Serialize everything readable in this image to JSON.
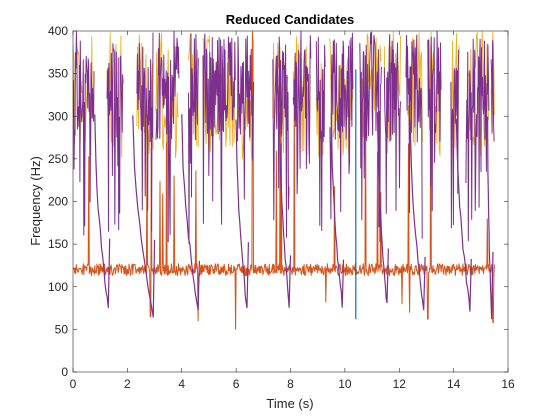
{
  "chart_data": {
    "type": "line",
    "title": "Reduced Candidates",
    "xlabel": "Time (s)",
    "ylabel": "Frequency (Hz)",
    "xlim": [
      0,
      16
    ],
    "ylim": [
      0,
      400
    ],
    "xticks": [
      0,
      2,
      4,
      6,
      8,
      10,
      12,
      14,
      16
    ],
    "yticks": [
      0,
      50,
      100,
      150,
      200,
      250,
      300,
      350,
      400
    ],
    "grid": false,
    "legend": "none",
    "colors": {
      "blue": "#0072BD",
      "orange": "#D95319",
      "yellow": "#EDB120",
      "purple": "#7E2F8E"
    },
    "voiced_segments": [
      [
        0.0,
        0.78
      ],
      [
        1.25,
        1.85
      ],
      [
        2.35,
        2.95
      ],
      [
        3.05,
        3.9
      ],
      [
        4.25,
        4.62
      ],
      [
        4.78,
        5.98
      ],
      [
        6.05,
        6.65
      ],
      [
        7.35,
        7.95
      ],
      [
        8.1,
        8.75
      ],
      [
        8.95,
        9.28
      ],
      [
        9.45,
        10.3
      ],
      [
        10.55,
        11.35
      ],
      [
        11.45,
        12.05
      ],
      [
        12.25,
        12.85
      ],
      [
        13.05,
        13.55
      ],
      [
        13.9,
        14.2
      ],
      [
        14.45,
        15.3
      ],
      [
        15.38,
        15.5
      ]
    ],
    "purple_descents": [
      {
        "x_start": 0.8,
        "x_end": 1.3,
        "y_end": 75
      },
      {
        "x_start": 2.2,
        "x_end": 2.95,
        "y_end": 66
      },
      {
        "x_start": 4.0,
        "x_end": 4.6,
        "y_end": 73
      },
      {
        "x_start": 6.0,
        "x_end": 6.4,
        "y_end": 73
      },
      {
        "x_start": 7.6,
        "x_end": 7.95,
        "y_end": 78
      },
      {
        "x_start": 9.5,
        "x_end": 9.9,
        "y_end": 80
      },
      {
        "x_start": 11.2,
        "x_end": 11.55,
        "y_end": 80
      },
      {
        "x_start": 12.4,
        "x_end": 12.9,
        "y_end": 72
      },
      {
        "x_start": 14.1,
        "x_end": 14.6,
        "y_end": 76
      },
      {
        "x_start": 15.25,
        "x_end": 15.4,
        "y_end": 60
      }
    ],
    "orange_baseline": {
      "x_start": 0.0,
      "x_end": 15.5,
      "y": 120
    },
    "orange_dips": [
      {
        "x": 2.85,
        "y": 65
      },
      {
        "x": 4.6,
        "y": 60
      },
      {
        "x": 5.98,
        "y": 50
      },
      {
        "x": 9.3,
        "y": 82
      },
      {
        "x": 12.1,
        "y": 80
      },
      {
        "x": 12.38,
        "y": 70
      },
      {
        "x": 13.05,
        "y": 62
      },
      {
        "x": 15.45,
        "y": 58
      }
    ],
    "blue_spikes": [
      {
        "x": 10.4,
        "y_top": 355,
        "y_bottom": 62
      }
    ],
    "series": [
      {
        "color": "blue",
        "range": [
          60,
          360
        ]
      },
      {
        "color": "orange",
        "range": [
          50,
          400
        ]
      },
      {
        "color": "yellow",
        "range": [
          150,
          400
        ]
      },
      {
        "color": "purple",
        "range": [
          60,
          400
        ]
      }
    ]
  }
}
